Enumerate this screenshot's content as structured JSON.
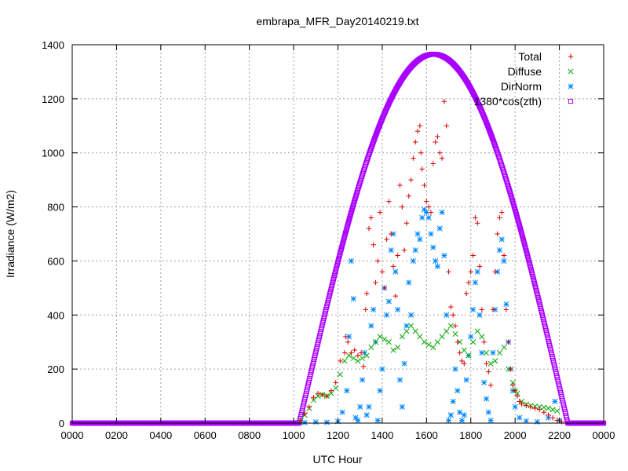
{
  "chart_data": {
    "type": "scatter",
    "title": "embrapa_MFR_Day20140219.txt",
    "xlabel": "UTC Hour",
    "ylabel": "Irradiance (W/m2)",
    "xlim": [
      0,
      24
    ],
    "ylim": [
      0,
      1400
    ],
    "x_ticks": [
      {
        "value": 0,
        "label": "0000"
      },
      {
        "value": 2,
        "label": "0200"
      },
      {
        "value": 4,
        "label": "0400"
      },
      {
        "value": 6,
        "label": "0600"
      },
      {
        "value": 8,
        "label": "0800"
      },
      {
        "value": 10,
        "label": "1000"
      },
      {
        "value": 12,
        "label": "1200"
      },
      {
        "value": 14,
        "label": "1400"
      },
      {
        "value": 16,
        "label": "1600"
      },
      {
        "value": 18,
        "label": "1800"
      },
      {
        "value": 20,
        "label": "2000"
      },
      {
        "value": 22,
        "label": "2200"
      },
      {
        "value": 24,
        "label": "0000"
      }
    ],
    "y_ticks": [
      0,
      200,
      400,
      600,
      800,
      1000,
      1200,
      1400
    ],
    "grid": true,
    "legend_position": "top-right",
    "series": [
      {
        "name": "Total",
        "color": "#dd0000",
        "marker": "plus",
        "points": [
          [
            10.3,
            10
          ],
          [
            10.5,
            35
          ],
          [
            10.7,
            60
          ],
          [
            10.9,
            95
          ],
          [
            11.1,
            110
          ],
          [
            11.3,
            105
          ],
          [
            11.5,
            100
          ],
          [
            11.7,
            120
          ],
          [
            11.9,
            150
          ],
          [
            12.1,
            230
          ],
          [
            12.3,
            260
          ],
          [
            12.35,
            320
          ],
          [
            12.45,
            300
          ],
          [
            12.6,
            260
          ],
          [
            12.75,
            270
          ],
          [
            12.9,
            250
          ],
          [
            13.05,
            260
          ],
          [
            13.15,
            210
          ],
          [
            13.25,
            420
          ],
          [
            13.3,
            480
          ],
          [
            13.4,
            720
          ],
          [
            13.5,
            760
          ],
          [
            13.6,
            660
          ],
          [
            13.7,
            520
          ],
          [
            13.8,
            600
          ],
          [
            13.9,
            780
          ],
          [
            14.0,
            560
          ],
          [
            14.1,
            500
          ],
          [
            14.2,
            680
          ],
          [
            14.3,
            820
          ],
          [
            14.4,
            700
          ],
          [
            14.5,
            580
          ],
          [
            14.6,
            470
          ],
          [
            14.7,
            620
          ],
          [
            14.8,
            880
          ],
          [
            14.9,
            800
          ],
          [
            15.0,
            640
          ],
          [
            15.1,
            740
          ],
          [
            15.2,
            840
          ],
          [
            15.3,
            900
          ],
          [
            15.4,
            980
          ],
          [
            15.5,
            1040
          ],
          [
            15.6,
            1080
          ],
          [
            15.7,
            1100
          ],
          [
            15.75,
            1000
          ],
          [
            15.8,
            940
          ],
          [
            15.9,
            880
          ],
          [
            16.0,
            820
          ],
          [
            16.1,
            800
          ],
          [
            16.2,
            780
          ],
          [
            16.3,
            960
          ],
          [
            16.4,
            1040
          ],
          [
            16.5,
            1060
          ],
          [
            16.6,
            1000
          ],
          [
            16.7,
            980
          ],
          [
            16.8,
            1190
          ],
          [
            16.9,
            1100
          ],
          [
            17.0,
            560
          ],
          [
            17.1,
            430
          ],
          [
            17.2,
            400
          ],
          [
            17.3,
            360
          ],
          [
            17.4,
            300
          ],
          [
            17.5,
            260
          ],
          [
            17.6,
            230
          ],
          [
            17.7,
            220
          ],
          [
            17.8,
            480
          ],
          [
            17.9,
            520
          ],
          [
            18.0,
            560
          ],
          [
            18.1,
            620
          ],
          [
            18.2,
            760
          ],
          [
            18.3,
            740
          ],
          [
            18.4,
            580
          ],
          [
            18.5,
            420
          ],
          [
            18.6,
            300
          ],
          [
            18.7,
            220
          ],
          [
            18.8,
            190
          ],
          [
            18.9,
            140
          ],
          [
            19.0,
            420
          ],
          [
            19.1,
            560
          ],
          [
            19.2,
            700
          ],
          [
            19.3,
            760
          ],
          [
            19.4,
            780
          ],
          [
            19.5,
            620
          ],
          [
            19.6,
            420
          ],
          [
            19.7,
            300
          ],
          [
            19.8,
            200
          ],
          [
            19.9,
            140
          ],
          [
            20.0,
            120
          ],
          [
            20.1,
            100
          ],
          [
            20.2,
            80
          ],
          [
            20.3,
            70
          ],
          [
            20.5,
            65
          ],
          [
            20.7,
            60
          ],
          [
            20.9,
            55
          ],
          [
            21.1,
            50
          ],
          [
            21.3,
            40
          ],
          [
            21.5,
            30
          ],
          [
            21.7,
            20
          ],
          [
            21.9,
            10
          ],
          [
            22.1,
            5
          ]
        ]
      },
      {
        "name": "Diffuse",
        "color": "#00aa00",
        "marker": "cross",
        "points": [
          [
            10.3,
            8
          ],
          [
            10.5,
            30
          ],
          [
            10.7,
            55
          ],
          [
            10.9,
            85
          ],
          [
            11.1,
            100
          ],
          [
            11.3,
            105
          ],
          [
            11.5,
            100
          ],
          [
            11.7,
            110
          ],
          [
            11.9,
            130
          ],
          [
            12.1,
            180
          ],
          [
            12.3,
            230
          ],
          [
            12.5,
            250
          ],
          [
            12.7,
            240
          ],
          [
            12.9,
            230
          ],
          [
            13.1,
            240
          ],
          [
            13.3,
            250
          ],
          [
            13.5,
            280
          ],
          [
            13.7,
            300
          ],
          [
            13.9,
            320
          ],
          [
            14.1,
            310
          ],
          [
            14.3,
            300
          ],
          [
            14.5,
            270
          ],
          [
            14.7,
            280
          ],
          [
            14.9,
            320
          ],
          [
            15.1,
            340
          ],
          [
            15.3,
            360
          ],
          [
            15.5,
            340
          ],
          [
            15.7,
            320
          ],
          [
            15.9,
            300
          ],
          [
            16.1,
            290
          ],
          [
            16.3,
            280
          ],
          [
            16.5,
            300
          ],
          [
            16.7,
            320
          ],
          [
            16.9,
            340
          ],
          [
            17.1,
            360
          ],
          [
            17.3,
            330
          ],
          [
            17.5,
            300
          ],
          [
            17.7,
            270
          ],
          [
            17.9,
            250
          ],
          [
            18.1,
            300
          ],
          [
            18.3,
            340
          ],
          [
            18.5,
            320
          ],
          [
            18.7,
            260
          ],
          [
            18.9,
            220
          ],
          [
            19.1,
            230
          ],
          [
            19.3,
            260
          ],
          [
            19.5,
            280
          ],
          [
            19.7,
            200
          ],
          [
            19.9,
            150
          ],
          [
            20.0,
            120
          ],
          [
            20.1,
            110
          ],
          [
            20.3,
            80
          ],
          [
            20.5,
            70
          ],
          [
            20.7,
            65
          ],
          [
            20.9,
            62
          ],
          [
            21.1,
            60
          ],
          [
            21.3,
            58
          ],
          [
            21.5,
            55
          ],
          [
            21.7,
            50
          ],
          [
            21.9,
            45
          ]
        ]
      },
      {
        "name": "DirNorm",
        "color": "#0088ff",
        "marker": "star",
        "points": [
          [
            10.5,
            2
          ],
          [
            11.0,
            4
          ],
          [
            11.5,
            3
          ],
          [
            12.0,
            6
          ],
          [
            12.2,
            40
          ],
          [
            12.4,
            120
          ],
          [
            12.5,
            320
          ],
          [
            12.6,
            600
          ],
          [
            12.7,
            460
          ],
          [
            12.8,
            20
          ],
          [
            12.9,
            10
          ],
          [
            13.0,
            60
          ],
          [
            13.1,
            160
          ],
          [
            13.2,
            260
          ],
          [
            13.3,
            30
          ],
          [
            13.4,
            60
          ],
          [
            13.5,
            360
          ],
          [
            13.6,
            420
          ],
          [
            13.7,
            300
          ],
          [
            13.8,
            10
          ],
          [
            13.9,
            120
          ],
          [
            14.0,
            200
          ],
          [
            14.1,
            500
          ],
          [
            14.2,
            400
          ],
          [
            14.3,
            450
          ],
          [
            14.4,
            640
          ],
          [
            14.5,
            700
          ],
          [
            14.6,
            560
          ],
          [
            14.7,
            420
          ],
          [
            14.8,
            160
          ],
          [
            14.9,
            60
          ],
          [
            15.0,
            220
          ],
          [
            15.1,
            360
          ],
          [
            15.2,
            520
          ],
          [
            15.3,
            400
          ],
          [
            15.4,
            600
          ],
          [
            15.5,
            640
          ],
          [
            15.6,
            700
          ],
          [
            15.7,
            680
          ],
          [
            15.8,
            760
          ],
          [
            15.9,
            790
          ],
          [
            16.0,
            780
          ],
          [
            16.1,
            760
          ],
          [
            16.2,
            700
          ],
          [
            16.3,
            650
          ],
          [
            16.4,
            600
          ],
          [
            16.5,
            580
          ],
          [
            16.6,
            720
          ],
          [
            16.7,
            780
          ],
          [
            16.8,
            620
          ],
          [
            16.9,
            400
          ],
          [
            17.0,
            10
          ],
          [
            17.1,
            30
          ],
          [
            17.2,
            80
          ],
          [
            17.3,
            200
          ],
          [
            17.4,
            120
          ],
          [
            17.5,
            40
          ],
          [
            17.6,
            10
          ],
          [
            17.7,
            30
          ],
          [
            17.8,
            160
          ],
          [
            17.9,
            250
          ],
          [
            18.0,
            320
          ],
          [
            18.1,
            420
          ],
          [
            18.2,
            520
          ],
          [
            18.3,
            560
          ],
          [
            18.4,
            400
          ],
          [
            18.5,
            260
          ],
          [
            18.6,
            150
          ],
          [
            18.7,
            90
          ],
          [
            18.8,
            40
          ],
          [
            18.9,
            10
          ],
          [
            19.0,
            260
          ],
          [
            19.1,
            420
          ],
          [
            19.2,
            560
          ],
          [
            19.3,
            640
          ],
          [
            19.4,
            680
          ],
          [
            19.5,
            600
          ],
          [
            19.6,
            440
          ],
          [
            19.7,
            300
          ],
          [
            19.8,
            200
          ],
          [
            19.9,
            120
          ],
          [
            20.0,
            60
          ],
          [
            20.2,
            20
          ],
          [
            20.5,
            8
          ],
          [
            21.0,
            5
          ],
          [
            21.5,
            20
          ],
          [
            21.8,
            80
          ],
          [
            22.0,
            10
          ]
        ]
      },
      {
        "name": "1380*cos(zth)",
        "color": "#aa00ff",
        "marker": "square",
        "peak": 1365,
        "peak_x": 16.32,
        "rise_x": 10.25,
        "set_x": 22.38
      }
    ]
  }
}
